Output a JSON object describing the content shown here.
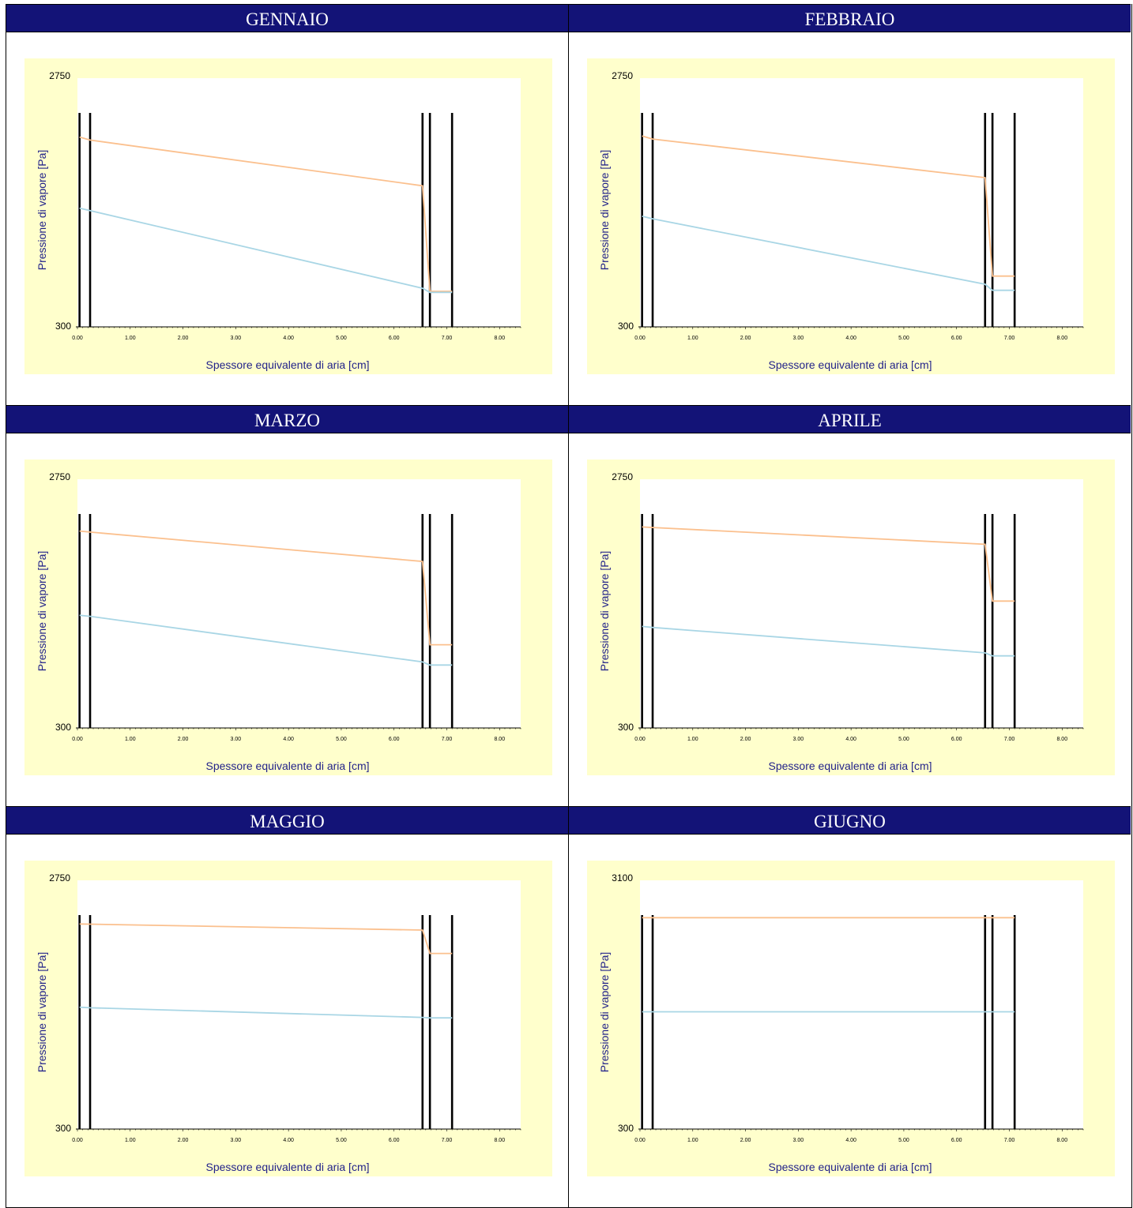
{
  "chart_data": [
    {
      "type": "line",
      "title": "GENNAIO",
      "xlabel": "Spessore equivalente di aria [cm]",
      "ylabel": "Pressione di vapore [Pa]",
      "xlim": [
        0,
        8.4
      ],
      "ylim": [
        300,
        2750
      ],
      "xticks": [
        "0.00",
        "1.00",
        "2.00",
        "3.00",
        "4.00",
        "5.00",
        "6.00",
        "7.00",
        "8.00"
      ],
      "yticks": [
        "300",
        "2750"
      ],
      "layer_boundaries": [
        0.04,
        0.24,
        6.54,
        6.68,
        7.1
      ],
      "colors": {
        "saturation": "#fbc08e",
        "actual": "#a9d6e5",
        "boundary": "#000000",
        "plot_bg": "#ffffcc"
      },
      "series": [
        {
          "key": "saturation",
          "x": [
            0.04,
            0.24,
            6.54,
            6.68,
            7.1
          ],
          "values": [
            2170,
            2140,
            1690,
            650,
            650
          ]
        },
        {
          "key": "actual",
          "x": [
            0.04,
            0.24,
            6.54,
            6.68,
            7.1
          ],
          "values": [
            1470,
            1445,
            680,
            640,
            640
          ]
        }
      ]
    },
    {
      "type": "line",
      "title": "FEBBRAIO",
      "xlabel": "Spessore equivalente di aria [cm]",
      "ylabel": "Pressione di vapore [Pa]",
      "xlim": [
        0,
        8.4
      ],
      "ylim": [
        300,
        2750
      ],
      "xticks": [
        "0.00",
        "1.00",
        "2.00",
        "3.00",
        "4.00",
        "5.00",
        "6.00",
        "7.00",
        "8.00"
      ],
      "yticks": [
        "300",
        "2750"
      ],
      "layer_boundaries": [
        0.04,
        0.24,
        6.54,
        6.68,
        7.1
      ],
      "colors": {
        "saturation": "#fbc08e",
        "actual": "#a9d6e5",
        "boundary": "#000000",
        "plot_bg": "#ffffcc"
      },
      "series": [
        {
          "key": "saturation",
          "x": [
            0.04,
            0.24,
            6.54,
            6.68,
            7.1
          ],
          "values": [
            2180,
            2150,
            1770,
            800,
            800
          ]
        },
        {
          "key": "actual",
          "x": [
            0.04,
            0.24,
            6.54,
            6.68,
            7.1
          ],
          "values": [
            1390,
            1365,
            720,
            660,
            660
          ]
        }
      ]
    },
    {
      "type": "line",
      "title": "MARZO",
      "xlabel": "Spessore equivalente di aria [cm]",
      "ylabel": "Pressione di vapore [Pa]",
      "xlim": [
        0,
        8.4
      ],
      "ylim": [
        300,
        2750
      ],
      "xticks": [
        "0.00",
        "1.00",
        "2.00",
        "3.00",
        "4.00",
        "5.00",
        "6.00",
        "7.00",
        "8.00"
      ],
      "yticks": [
        "300",
        "2750"
      ],
      "layer_boundaries": [
        0.04,
        0.24,
        6.54,
        6.68,
        7.1
      ],
      "colors": {
        "saturation": "#fbc08e",
        "actual": "#a9d6e5",
        "boundary": "#000000",
        "plot_bg": "#ffffcc"
      },
      "series": [
        {
          "key": "saturation",
          "x": [
            0.04,
            0.24,
            6.54,
            6.68,
            7.1
          ],
          "values": [
            2240,
            2230,
            1940,
            1120,
            1120
          ]
        },
        {
          "key": "actual",
          "x": [
            0.04,
            0.24,
            6.54,
            6.68,
            7.1
          ],
          "values": [
            1410,
            1400,
            950,
            920,
            920
          ]
        }
      ]
    },
    {
      "type": "line",
      "title": "APRILE",
      "xlabel": "Spessore equivalente di aria [cm]",
      "ylabel": "Pressione di vapore [Pa]",
      "xlim": [
        0,
        8.4
      ],
      "ylim": [
        300,
        2750
      ],
      "xticks": [
        "0.00",
        "1.00",
        "2.00",
        "3.00",
        "4.00",
        "5.00",
        "6.00",
        "7.00",
        "8.00"
      ],
      "yticks": [
        "300",
        "2750"
      ],
      "layer_boundaries": [
        0.04,
        0.24,
        6.54,
        6.68,
        7.1
      ],
      "colors": {
        "saturation": "#fbc08e",
        "actual": "#a9d6e5",
        "boundary": "#000000",
        "plot_bg": "#ffffcc"
      },
      "series": [
        {
          "key": "saturation",
          "x": [
            0.04,
            0.24,
            6.54,
            6.68,
            7.1
          ],
          "values": [
            2280,
            2275,
            2110,
            1550,
            1550
          ]
        },
        {
          "key": "actual",
          "x": [
            0.04,
            0.24,
            6.54,
            6.68,
            7.1
          ],
          "values": [
            1300,
            1290,
            1040,
            1010,
            1010
          ]
        }
      ]
    },
    {
      "type": "line",
      "title": "MAGGIO",
      "xlabel": "Spessore equivalente di aria [cm]",
      "ylabel": "Pressione di vapore [Pa]",
      "xlim": [
        0,
        8.4
      ],
      "ylim": [
        300,
        2750
      ],
      "xticks": [
        "0.00",
        "1.00",
        "2.00",
        "3.00",
        "4.00",
        "5.00",
        "6.00",
        "7.00",
        "8.00"
      ],
      "yticks": [
        "300",
        "2750"
      ],
      "layer_boundaries": [
        0.04,
        0.24,
        6.54,
        6.68,
        7.1
      ],
      "colors": {
        "saturation": "#fbc08e",
        "actual": "#a9d6e5",
        "boundary": "#000000",
        "plot_bg": "#ffffcc"
      },
      "series": [
        {
          "key": "saturation",
          "x": [
            0.04,
            0.24,
            6.54,
            6.68,
            7.1
          ],
          "values": [
            2320,
            2318,
            2260,
            2030,
            2030
          ]
        },
        {
          "key": "actual",
          "x": [
            0.04,
            0.24,
            6.54,
            6.68,
            7.1
          ],
          "values": [
            1500,
            1495,
            1400,
            1395,
            1395
          ]
        }
      ]
    },
    {
      "type": "line",
      "title": "GIUGNO",
      "xlabel": "Spessore equivalente di aria [cm]",
      "ylabel": "Pressione di vapore [Pa]",
      "xlim": [
        0,
        8.4
      ],
      "ylim": [
        300,
        3100
      ],
      "xticks": [
        "0.00",
        "1.00",
        "2.00",
        "3.00",
        "4.00",
        "5.00",
        "6.00",
        "7.00",
        "8.00"
      ],
      "yticks": [
        "300",
        "3100"
      ],
      "layer_boundaries": [
        0.04,
        0.24,
        6.54,
        6.68,
        7.1
      ],
      "colors": {
        "saturation": "#fbc08e",
        "actual": "#a9d6e5",
        "boundary": "#000000",
        "plot_bg": "#ffffcc"
      },
      "series": [
        {
          "key": "saturation",
          "x": [
            0.04,
            0.24,
            6.54,
            6.68,
            7.1
          ],
          "values": [
            2680,
            2680,
            2680,
            2680,
            2680
          ]
        },
        {
          "key": "actual",
          "x": [
            0.04,
            0.24,
            6.54,
            6.68,
            7.1
          ],
          "values": [
            1620,
            1620,
            1620,
            1620,
            1620
          ]
        }
      ]
    }
  ]
}
